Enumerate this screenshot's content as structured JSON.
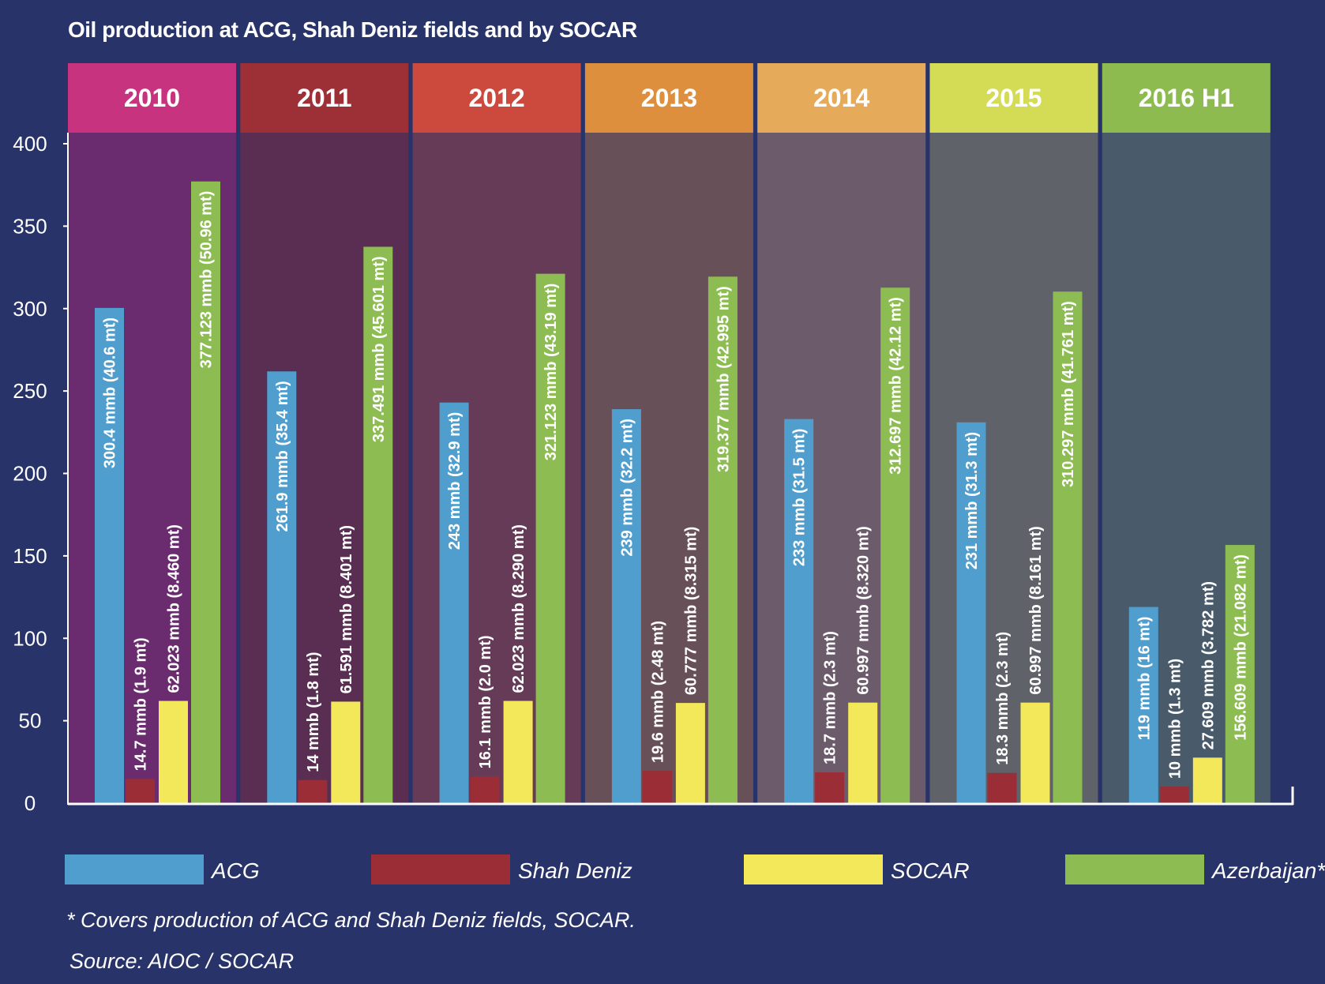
{
  "chart_data": {
    "type": "bar",
    "title": "Oil production at ACG, Shah Deniz fields and by SOCAR",
    "categories": [
      "2010",
      "2011",
      "2012",
      "2013",
      "2014",
      "2015",
      "2016 H1"
    ],
    "category_colors": [
      "#c7337e",
      "#9d2f37",
      "#cb4a3d",
      "#dd8f3d",
      "#e5ab5a",
      "#d4dc55",
      "#8dbb50"
    ],
    "panel_colors": [
      "#6a2c6f",
      "#5a2e53",
      "#653b58",
      "#685059",
      "#6c5c6b",
      "#5f6268",
      "#495b6a"
    ],
    "ylim": [
      0,
      400
    ],
    "yticks": [
      0,
      50,
      100,
      150,
      200,
      250,
      300,
      350,
      400
    ],
    "series": [
      {
        "name": "ACG",
        "color": "#509ecd",
        "values": [
          300.4,
          261.9,
          243,
          239,
          233,
          231,
          119
        ],
        "labels": [
          "300.4 mmb (40.6 mt)",
          "261.9 mmb (35.4 mt)",
          "243 mmb (32.9 mt)",
          "239 mmb (32.2 mt)",
          "233 mmb (31.5 mt)",
          "231 mmb (31.3 mt)",
          "119 mmb (16 mt)"
        ]
      },
      {
        "name": "Shah Deniz",
        "color": "#9a2d36",
        "values": [
          14.7,
          14,
          16.1,
          19.6,
          18.7,
          18.3,
          10
        ],
        "labels": [
          "14.7 mmb (1.9 mt)",
          "14 mmb (1.8 mt)",
          "16.1 mmb (2.0 mt)",
          "19.6 mmb (2.48 mt)",
          "18.7 mmb (2.3 mt)",
          "18.3 mmb (2.3 mt)",
          "10 mmb (1.3 mt)"
        ]
      },
      {
        "name": "SOCAR",
        "color": "#f3e85a",
        "values": [
          62.023,
          61.591,
          62.023,
          60.777,
          60.997,
          60.997,
          27.609
        ],
        "labels": [
          "62.023 mmb (8.460 mt)",
          "61.591 mmb (8.401 mt)",
          "62.023 mmb (8.290 mt)",
          "60.777 mmb (8.315 mt)",
          "60.997 mmb (8.320 mt)",
          "60.997 mmb (8.161 mt)",
          "27.609 mmb (3.782 mt)"
        ]
      },
      {
        "name": "Azerbaijan*",
        "color": "#8dbd52",
        "values": [
          377.123,
          337.491,
          321.123,
          319.377,
          312.697,
          310.297,
          156.609
        ],
        "labels": [
          "377.123 mmb (50.96 mt)",
          "337.491 mmb (45.601 mt)",
          "321.123 mmb (43.19 mt)",
          "319.377 mmb (42.995 mt)",
          "312.697 mmb (42.12 mt)",
          "310.297 mmb (41.761 mt)",
          "156.609 mmb (21.082 mt)"
        ]
      }
    ]
  },
  "footnote": "* Covers production of ACG and Shah Deniz fields, SOCAR.",
  "source": "Source: AIOC / SOCAR"
}
